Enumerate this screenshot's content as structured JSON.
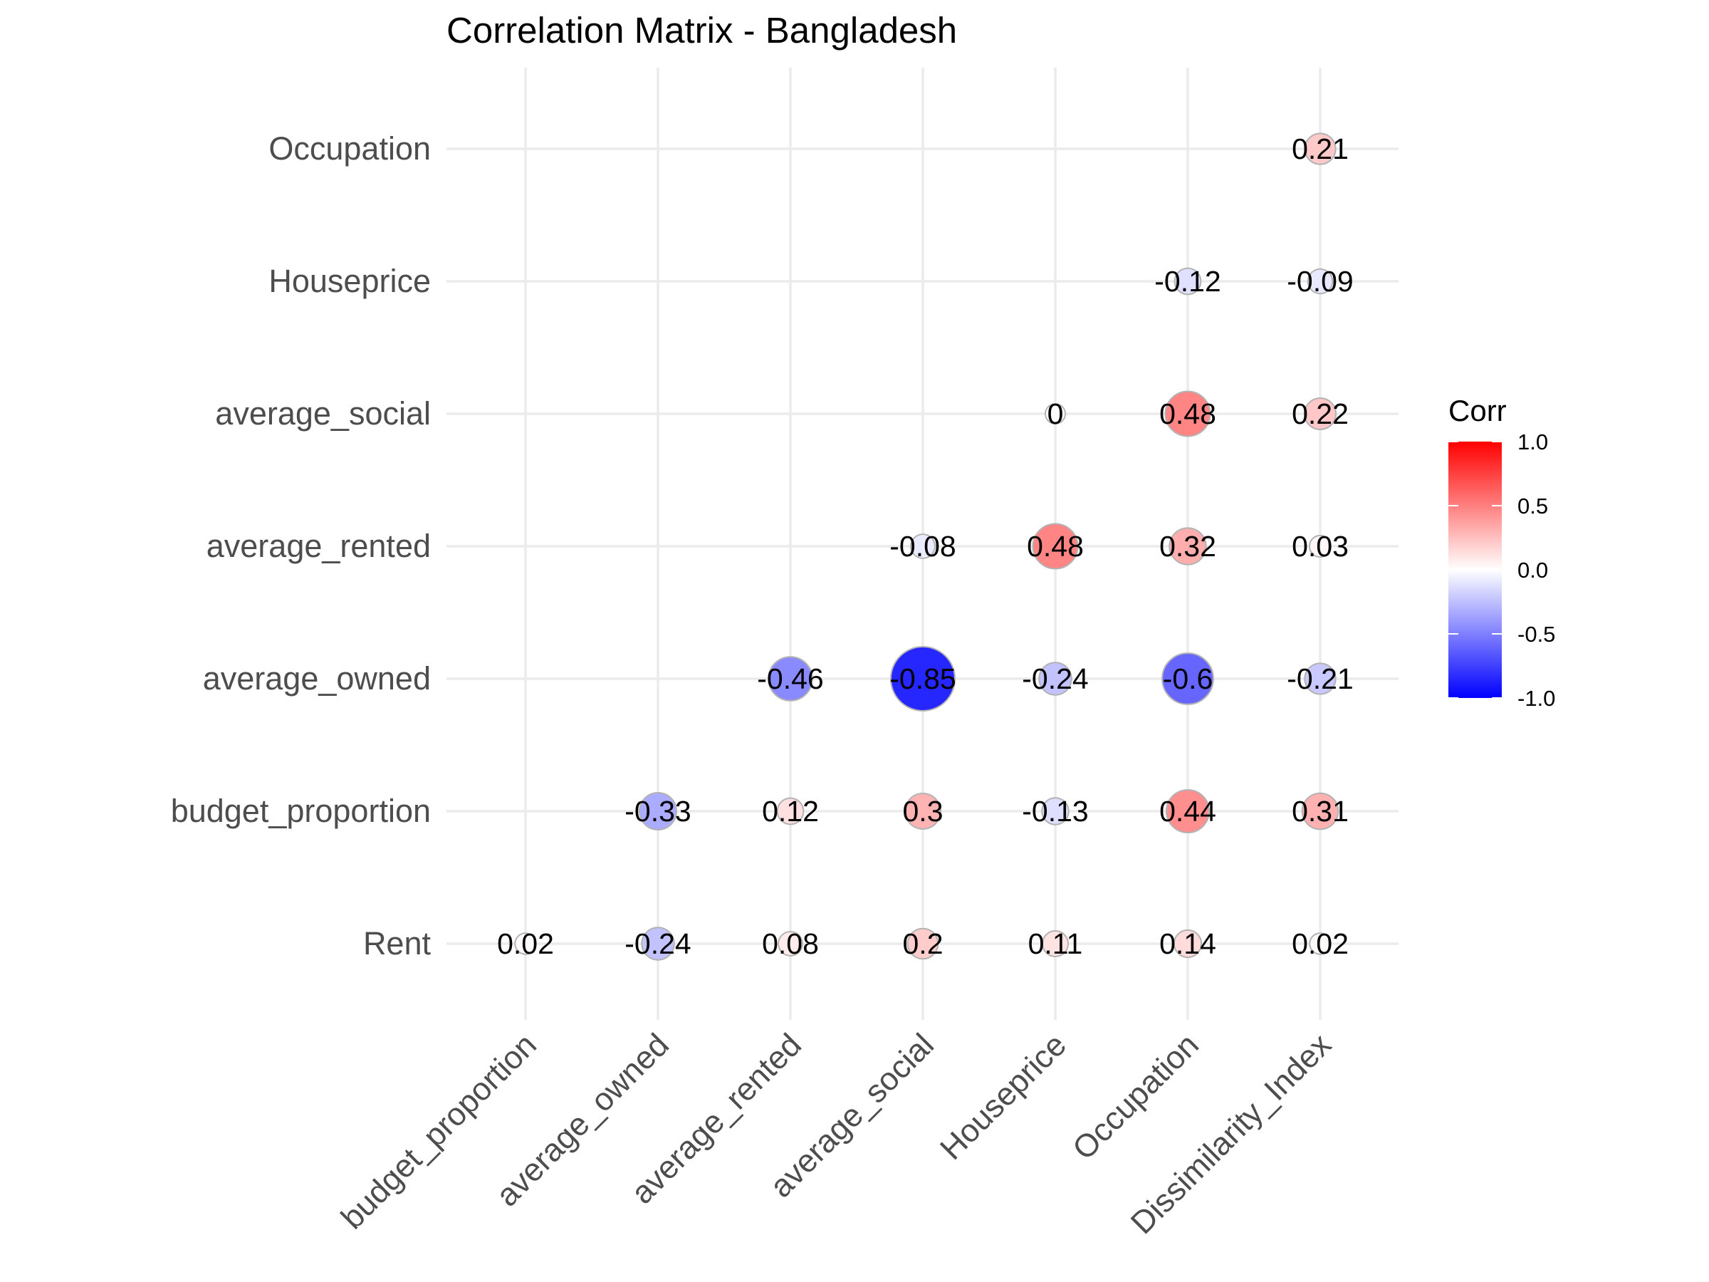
{
  "chart_data": {
    "type": "bubble-correlation-matrix",
    "title": "Correlation Matrix - Bangladesh",
    "x_categories": [
      "budget_proportion",
      "average_owned",
      "average_rented",
      "average_social",
      "Houseprice",
      "Occupation",
      "Dissimilarity_Index"
    ],
    "y_categories": [
      "Rent",
      "budget_proportion",
      "average_owned",
      "average_rented",
      "average_social",
      "Houseprice",
      "Occupation"
    ],
    "cells": [
      {
        "x": "budget_proportion",
        "y": "Rent",
        "value": 0.02,
        "label": "0.02"
      },
      {
        "x": "average_owned",
        "y": "Rent",
        "value": -0.24,
        "label": "-0.24"
      },
      {
        "x": "average_rented",
        "y": "Rent",
        "value": 0.08,
        "label": "0.08"
      },
      {
        "x": "average_social",
        "y": "Rent",
        "value": 0.2,
        "label": "0.2"
      },
      {
        "x": "Houseprice",
        "y": "Rent",
        "value": 0.11,
        "label": "0.11"
      },
      {
        "x": "Occupation",
        "y": "Rent",
        "value": 0.14,
        "label": "0.14"
      },
      {
        "x": "Dissimilarity_Index",
        "y": "Rent",
        "value": 0.02,
        "label": "0.02"
      },
      {
        "x": "average_owned",
        "y": "budget_proportion",
        "value": -0.33,
        "label": "-0.33"
      },
      {
        "x": "average_rented",
        "y": "budget_proportion",
        "value": 0.12,
        "label": "0.12"
      },
      {
        "x": "average_social",
        "y": "budget_proportion",
        "value": 0.3,
        "label": "0.3"
      },
      {
        "x": "Houseprice",
        "y": "budget_proportion",
        "value": -0.13,
        "label": "-0.13"
      },
      {
        "x": "Occupation",
        "y": "budget_proportion",
        "value": 0.44,
        "label": "0.44"
      },
      {
        "x": "Dissimilarity_Index",
        "y": "budget_proportion",
        "value": 0.31,
        "label": "0.31"
      },
      {
        "x": "average_rented",
        "y": "average_owned",
        "value": -0.46,
        "label": "-0.46"
      },
      {
        "x": "average_social",
        "y": "average_owned",
        "value": -0.85,
        "label": "-0.85"
      },
      {
        "x": "Houseprice",
        "y": "average_owned",
        "value": -0.24,
        "label": "-0.24"
      },
      {
        "x": "Occupation",
        "y": "average_owned",
        "value": -0.6,
        "label": "-0.6"
      },
      {
        "x": "Dissimilarity_Index",
        "y": "average_owned",
        "value": -0.21,
        "label": "-0.21"
      },
      {
        "x": "average_social",
        "y": "average_rented",
        "value": -0.08,
        "label": "-0.08"
      },
      {
        "x": "Houseprice",
        "y": "average_rented",
        "value": 0.48,
        "label": "0.48"
      },
      {
        "x": "Occupation",
        "y": "average_rented",
        "value": 0.32,
        "label": "0.32"
      },
      {
        "x": "Dissimilarity_Index",
        "y": "average_rented",
        "value": 0.03,
        "label": "0.03"
      },
      {
        "x": "Houseprice",
        "y": "average_social",
        "value": 0,
        "label": "0"
      },
      {
        "x": "Occupation",
        "y": "average_social",
        "value": 0.48,
        "label": "0.48"
      },
      {
        "x": "Dissimilarity_Index",
        "y": "average_social",
        "value": 0.22,
        "label": "0.22"
      },
      {
        "x": "Occupation",
        "y": "Houseprice",
        "value": -0.12,
        "label": "-0.12"
      },
      {
        "x": "Dissimilarity_Index",
        "y": "Houseprice",
        "value": -0.09,
        "label": "-0.09"
      },
      {
        "x": "Dissimilarity_Index",
        "y": "Occupation",
        "value": 0.21,
        "label": "0.21"
      }
    ],
    "legend": {
      "title": "Corr",
      "placement": "right",
      "range": [
        -1,
        1
      ],
      "ticks": [
        1.0,
        0.5,
        0.0,
        -0.5,
        -1.0
      ],
      "tick_labels": [
        "1.0",
        "0.5",
        "0.0",
        "-0.5",
        "-1.0"
      ],
      "colors": {
        "low": "#0000ff",
        "mid": "#ffffff",
        "high": "#ff0000"
      }
    },
    "grid": true
  }
}
